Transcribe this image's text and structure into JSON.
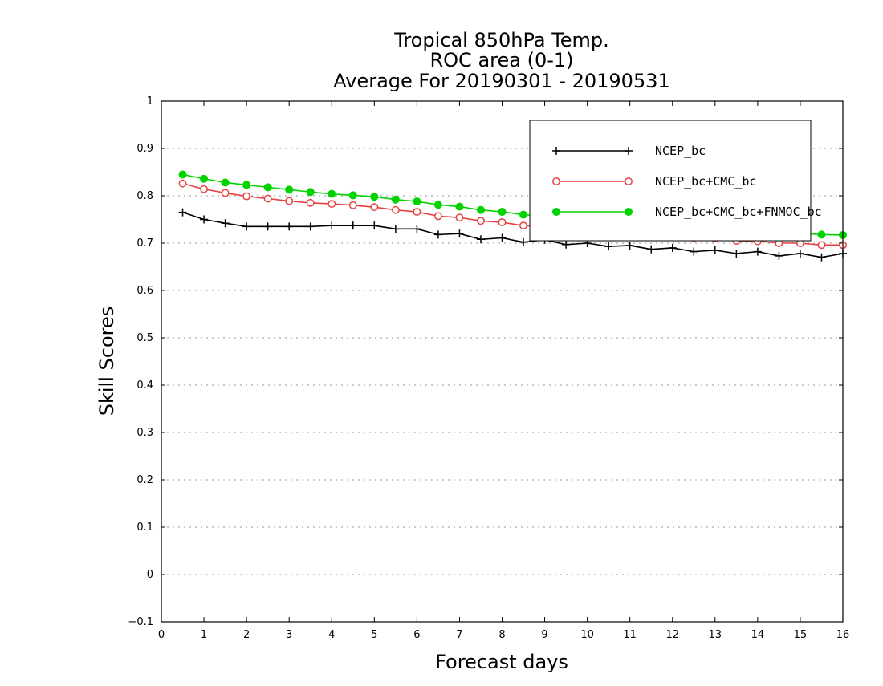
{
  "chart_data": {
    "type": "line",
    "title": [
      "Tropical 850hPa Temp.",
      "ROC area (0-1)",
      "Average For 20190301 - 20190531"
    ],
    "xlabel": "Forecast days",
    "ylabel": "Skill Scores",
    "xlim": [
      0,
      16
    ],
    "ylim": [
      -0.1,
      1
    ],
    "xticks": [
      "0",
      "1",
      "2",
      "3",
      "4",
      "5",
      "6",
      "7",
      "8",
      "9",
      "10",
      "11",
      "12",
      "13",
      "14",
      "15",
      "16"
    ],
    "yticks": [
      "−0.1",
      "0",
      "0.1",
      "0.2",
      "0.3",
      "0.4",
      "0.5",
      "0.6",
      "0.7",
      "0.8",
      "0.9",
      "1"
    ],
    "grid": "horizontal dotted",
    "legend_position": "top-right",
    "x": [
      0.5,
      1,
      1.5,
      2,
      2.5,
      3,
      3.5,
      4,
      4.5,
      5,
      5.5,
      6,
      6.5,
      7,
      7.5,
      8,
      8.5,
      9,
      9.5,
      10,
      10.5,
      11,
      11.5,
      12,
      12.5,
      13,
      13.5,
      14,
      14.5,
      15,
      15.5,
      16
    ],
    "series": [
      {
        "name": "NCEP_bc",
        "color": "#000000",
        "marker": "plus",
        "values": [
          0.765,
          0.75,
          0.742,
          0.735,
          0.735,
          0.735,
          0.735,
          0.737,
          0.737,
          0.737,
          0.73,
          0.73,
          0.718,
          0.72,
          0.708,
          0.711,
          0.702,
          0.707,
          0.697,
          0.7,
          0.693,
          0.695,
          0.687,
          0.69,
          0.682,
          0.685,
          0.678,
          0.682,
          0.673,
          0.678,
          0.67,
          0.678
        ]
      },
      {
        "name": "NCEP_bc+CMC_bc",
        "color": "#e84040",
        "marker": "open-circle",
        "values": [
          0.826,
          0.814,
          0.806,
          0.799,
          0.794,
          0.789,
          0.785,
          0.783,
          0.78,
          0.776,
          0.77,
          0.766,
          0.757,
          0.754,
          0.747,
          0.744,
          0.737,
          0.735,
          0.728,
          0.728,
          0.724,
          0.722,
          0.717,
          0.716,
          0.711,
          0.71,
          0.705,
          0.704,
          0.7,
          0.7,
          0.696,
          0.696
        ]
      },
      {
        "name": "NCEP_bc+CMC_bc+FNMOC_bc",
        "color": "#00d400",
        "marker": "filled-circle",
        "values": [
          0.845,
          0.836,
          0.828,
          0.823,
          0.818,
          0.813,
          0.808,
          0.804,
          0.801,
          0.798,
          0.792,
          0.788,
          0.781,
          0.777,
          0.77,
          0.766,
          0.76,
          0.757,
          0.751,
          0.749,
          0.745,
          0.743,
          0.738,
          0.736,
          0.732,
          0.73,
          0.727,
          0.725,
          0.722,
          0.721,
          0.718,
          0.717
        ]
      }
    ]
  }
}
